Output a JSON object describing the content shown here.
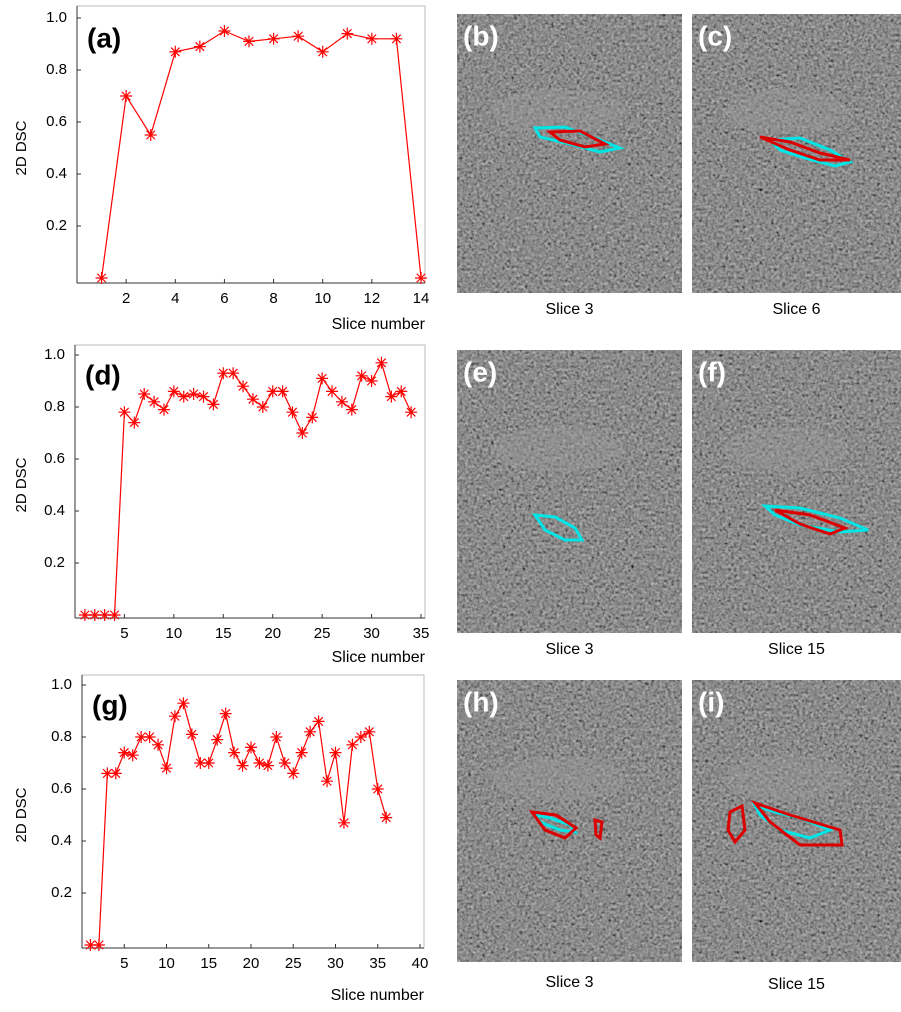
{
  "chart_data": [
    {
      "type": "line",
      "label": "(a)",
      "ylabel": "2D DSC",
      "xlabel": "Slice number",
      "color": "#ff0000",
      "x": [
        1,
        2,
        3,
        4,
        5,
        6,
        7,
        8,
        9,
        10,
        11,
        12,
        13,
        14
      ],
      "values": [
        0,
        0.7,
        0.55,
        0.87,
        0.89,
        0.95,
        0.91,
        0.92,
        0.93,
        0.87,
        0.94,
        0.92,
        0.92,
        0
      ],
      "xlim": [
        0,
        14
      ],
      "xticks": [
        2,
        4,
        6,
        8,
        10,
        12,
        14
      ],
      "ylim": [
        0,
        1
      ],
      "yticks": [
        0.2,
        0.4,
        0.6,
        0.8,
        {
          "value": 1,
          "label": "1.0"
        }
      ]
    },
    {
      "type": "line",
      "label": "(d)",
      "ylabel": "2D DSC",
      "xlabel": "Slice number",
      "color": "#ff0000",
      "x": [
        1,
        2,
        3,
        4,
        5,
        6,
        7,
        8,
        9,
        10,
        11,
        12,
        13,
        14,
        15,
        16,
        17,
        18,
        19,
        20,
        21,
        22,
        23,
        24,
        25,
        26,
        27,
        28,
        29,
        30,
        31,
        32,
        33,
        34
      ],
      "values": [
        0,
        0,
        0,
        0,
        0.78,
        0.74,
        0.85,
        0.82,
        0.79,
        0.86,
        0.84,
        0.85,
        0.84,
        0.81,
        0.93,
        0.93,
        0.88,
        0.83,
        0.8,
        0.86,
        0.86,
        0.78,
        0.7,
        0.76,
        0.91,
        0.86,
        0.82,
        0.79,
        0.92,
        0.9,
        0.97,
        0.84,
        0.86,
        0.78
      ],
      "xlim": [
        0,
        35
      ],
      "xticks": [
        5,
        10,
        15,
        20,
        25,
        30,
        35
      ],
      "ylim": [
        0,
        1
      ],
      "yticks": [
        0.2,
        0.4,
        0.6,
        0.8,
        {
          "value": 1,
          "label": "1.0"
        }
      ]
    },
    {
      "type": "line",
      "label": "(g)",
      "ylabel": "2D DSC",
      "xlabel": "Slice number",
      "color": "#ff0000",
      "x": [
        1,
        2,
        3,
        4,
        5,
        6,
        7,
        8,
        9,
        10,
        11,
        12,
        13,
        14,
        15,
        16,
        17,
        18,
        19,
        20,
        21,
        22,
        23,
        24,
        25,
        26,
        27,
        28,
        29,
        30,
        31,
        32,
        33,
        34,
        35,
        36
      ],
      "values": [
        0,
        0,
        0.66,
        0.66,
        0.74,
        0.73,
        0.8,
        0.8,
        0.77,
        0.68,
        0.88,
        0.93,
        0.81,
        0.7,
        0.7,
        0.79,
        0.89,
        0.74,
        0.69,
        0.76,
        0.7,
        0.69,
        0.8,
        0.7,
        0.66,
        0.74,
        0.82,
        0.86,
        0.63,
        0.74,
        0.47,
        0.77,
        0.8,
        0.82,
        0.6,
        0.49
      ],
      "xlim": [
        0,
        40
      ],
      "xticks": [
        5,
        10,
        15,
        20,
        25,
        30,
        35,
        40
      ],
      "ylim": [
        0,
        1
      ],
      "yticks": [
        0.2,
        0.4,
        0.6,
        0.8,
        {
          "value": 1,
          "label": "1.0"
        }
      ]
    }
  ],
  "image_panels": [
    {
      "label": "(b)",
      "caption": "Slice 3"
    },
    {
      "label": "(c)",
      "caption": "Slice 6"
    },
    {
      "label": "(e)",
      "caption": "Slice 3"
    },
    {
      "label": "(f)",
      "caption": "Slice 15"
    },
    {
      "label": "(h)",
      "caption": "Slice 3"
    },
    {
      "label": "(i)",
      "caption": "Slice 15"
    }
  ]
}
